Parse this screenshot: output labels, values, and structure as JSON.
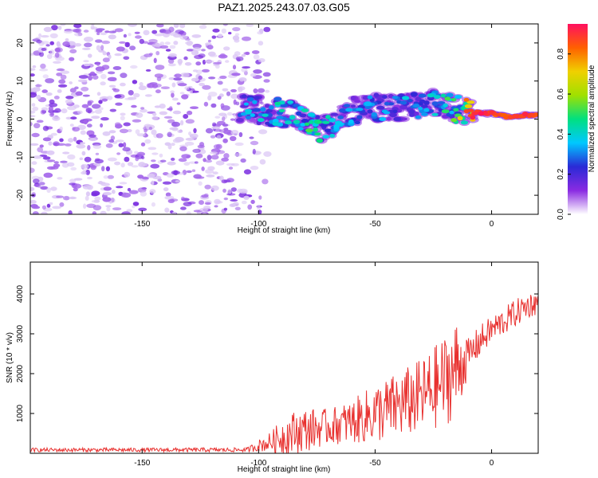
{
  "title": "PAZ1.2025.243.07.03.G05",
  "colors": {
    "snr_line": "#e8312f",
    "blob_light": "#dcc8f5",
    "blob_mid": "#a466ea",
    "blob_dark": "#7a2ee0"
  },
  "chart_data": [
    {
      "type": "heatmap",
      "name": "spectrogram",
      "xlabel": "Height of straight line (km)",
      "ylabel": "Frequency (Hz)",
      "xlim": [
        -198,
        20
      ],
      "ylim": [
        -25,
        25
      ],
      "xticks": [
        -150,
        -100,
        -50,
        0
      ],
      "yticks": [
        -20,
        -10,
        0,
        10,
        20
      ],
      "xtick_labels": [
        "-150",
        "-100",
        "-50",
        "0"
      ],
      "ytick_labels": [
        "-20",
        "-10",
        "0",
        "10",
        "20"
      ],
      "noise_region_x": [
        -198,
        -100
      ],
      "signal_track": {
        "x": [
          -108,
          -100,
          -95,
          -85,
          -78,
          -72,
          -65,
          -55,
          -45,
          -35,
          -25,
          -15,
          -10,
          -5,
          0,
          5,
          10,
          15,
          20
        ],
        "freq_hz": [
          3,
          2.5,
          2,
          1.5,
          -2,
          -3,
          1,
          3,
          3,
          3.5,
          4,
          2.5,
          2,
          1.5,
          1.5,
          1,
          0.5,
          1,
          1
        ],
        "amplitude": [
          0.3,
          0.35,
          0.4,
          0.35,
          0.45,
          0.4,
          0.3,
          0.3,
          0.3,
          0.35,
          0.35,
          0.5,
          0.85,
          0.95,
          0.9,
          0.85,
          0.9,
          0.9,
          0.85
        ]
      },
      "colorbar": {
        "label": "Normalized spectral amplitude",
        "range": [
          0,
          0.95
        ],
        "ticks": [
          0.0,
          0.2,
          0.4,
          0.6,
          0.8
        ],
        "tick_labels": [
          "0.0",
          "0.2",
          "0.4",
          "0.6",
          "0.8"
        ],
        "stops": [
          "#ffffff",
          "#8a2be2",
          "#2a2ad6",
          "#00c8ff",
          "#00e080",
          "#a0e000",
          "#f0d000",
          "#ff6000",
          "#ff1060"
        ]
      }
    },
    {
      "type": "line",
      "name": "snr",
      "xlabel": "Height of straight line (km)",
      "ylabel": "SNR (10 * v/v)",
      "xlim": [
        -198,
        20
      ],
      "ylim": [
        0,
        4800
      ],
      "xticks": [
        -150,
        -100,
        -50,
        0
      ],
      "yticks": [
        1000,
        2000,
        3000,
        4000
      ],
      "xtick_labels": [
        "-150",
        "-100",
        "-50",
        "0"
      ],
      "ytick_labels": [
        "1000",
        "2000",
        "3000",
        "4000"
      ],
      "envelope": {
        "x": [
          -198,
          -150,
          -105,
          -100,
          -95,
          -90,
          -85,
          -80,
          -75,
          -70,
          -65,
          -60,
          -55,
          -50,
          -45,
          -40,
          -35,
          -30,
          -25,
          -20,
          -15,
          -10,
          -5,
          0,
          5,
          10,
          15,
          20
        ],
        "base": [
          70,
          70,
          70,
          150,
          200,
          280,
          350,
          420,
          480,
          530,
          580,
          620,
          700,
          780,
          850,
          950,
          1050,
          1150,
          1300,
          1500,
          1750,
          2300,
          2700,
          3000,
          3200,
          3400,
          3600,
          3700
        ],
        "amplitude": [
          100,
          100,
          110,
          300,
          500,
          900,
          1100,
          1100,
          1000,
          900,
          1000,
          1100,
          1300,
          1500,
          1600,
          1700,
          1800,
          1900,
          2100,
          2300,
          2500,
          900,
          800,
          700,
          700,
          700,
          650,
          600
        ]
      }
    }
  ]
}
